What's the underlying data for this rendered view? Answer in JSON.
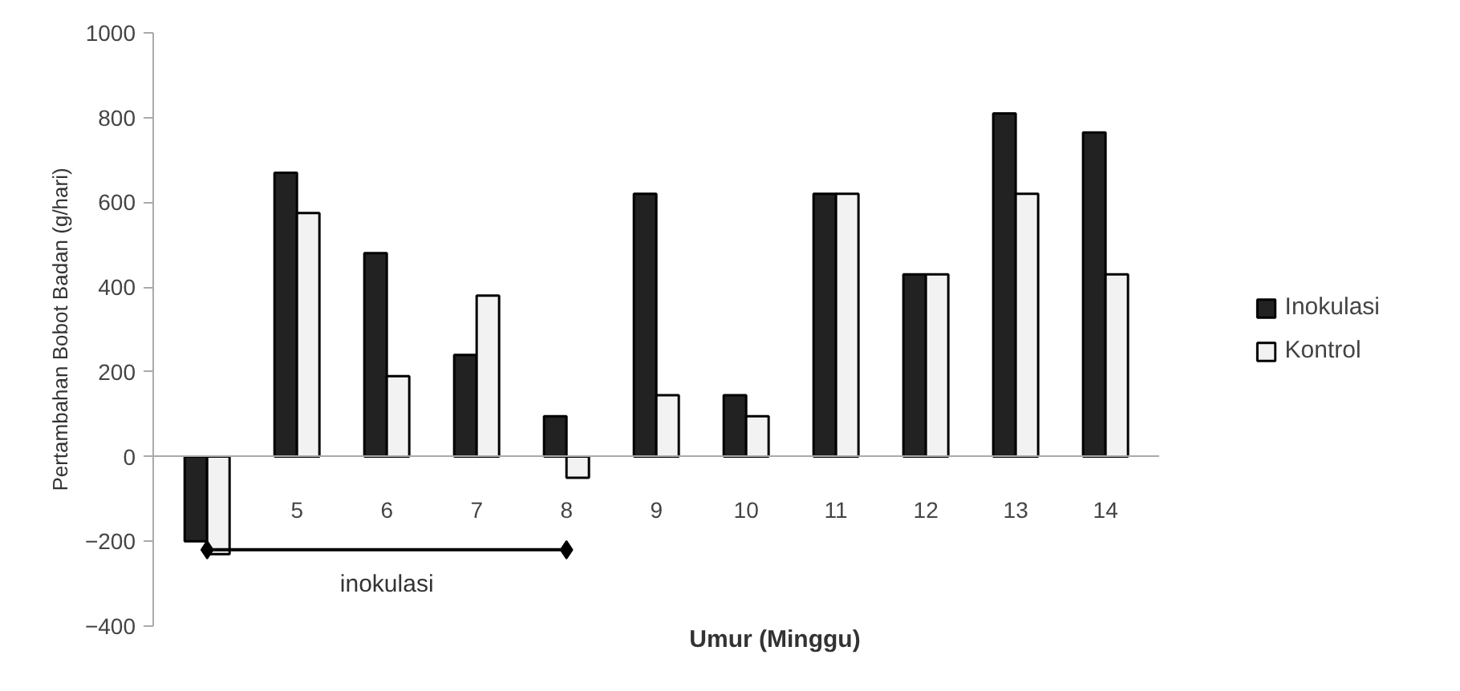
{
  "chart_data": {
    "type": "bar",
    "xlabel": "Umur (Minggu)",
    "ylabel": "Pertambahan Bobot Badan (g/hari)",
    "categories": [
      null,
      "5",
      "6",
      "7",
      "8",
      "9",
      "10",
      "11",
      "12",
      "13",
      "14"
    ],
    "series": [
      {
        "name": "Inokulasi",
        "color": "#222222",
        "values": [
          -200,
          670,
          480,
          240,
          95,
          620,
          145,
          620,
          430,
          810,
          765
        ]
      },
      {
        "name": "Kontrol",
        "color": "#f2f2f2",
        "values": [
          -230,
          575,
          190,
          380,
          -50,
          145,
          95,
          620,
          430,
          620,
          430
        ]
      },
      {
        "type": "line",
        "color": "#000000",
        "values": [
          -220,
          -220,
          -220,
          -220,
          -220,
          null,
          null,
          null,
          null,
          null,
          null
        ]
      }
    ],
    "ylim": [
      -400,
      1000
    ],
    "yticks": [
      -400,
      -200,
      0,
      200,
      400,
      600,
      800,
      1000
    ],
    "annotations": [
      "inokulasi"
    ],
    "grid": false,
    "legend": "right"
  }
}
